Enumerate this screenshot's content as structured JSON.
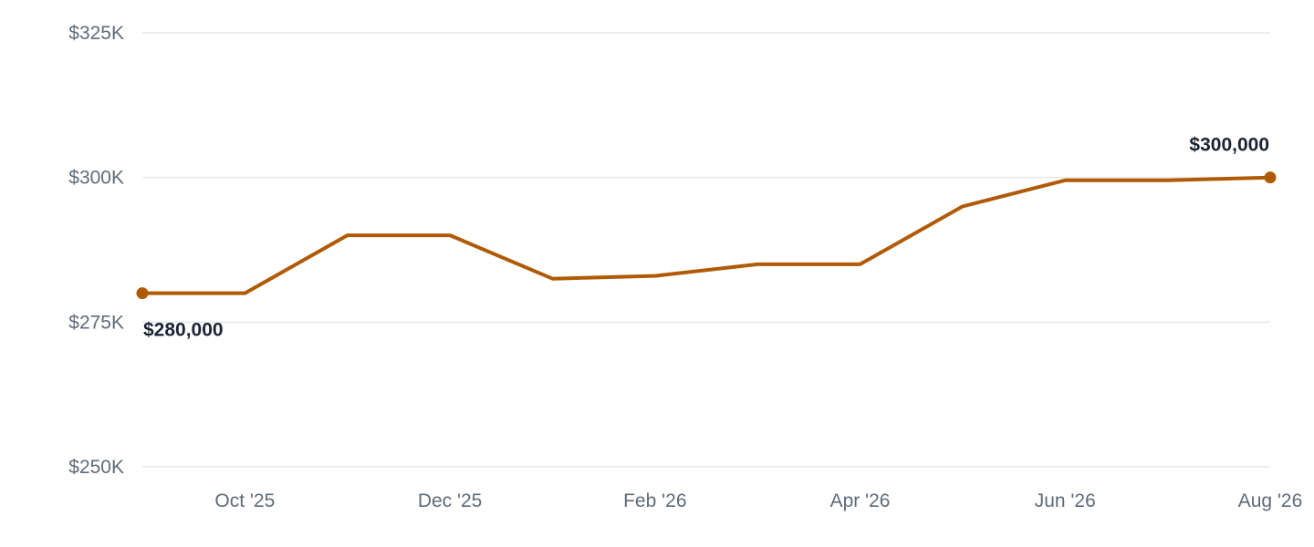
{
  "chart_data": {
    "type": "line",
    "x": [
      "Sep '25",
      "Oct '25",
      "Nov '25",
      "Dec '25",
      "Jan '26",
      "Feb '26",
      "Mar '26",
      "Apr '26",
      "May '26",
      "Jun '26",
      "Jul '26",
      "Aug '26"
    ],
    "x_tick_labels": [
      "Oct '25",
      "Dec '25",
      "Feb '26",
      "Apr '26",
      "Jun '26",
      "Aug '26"
    ],
    "series": [
      {
        "values": [
          280000,
          280000,
          290000,
          290000,
          282500,
          283000,
          285000,
          285000,
          295000,
          299500,
          299500,
          300000
        ],
        "color": "#b05a06"
      }
    ],
    "y_ticks": [
      250000,
      275000,
      300000,
      325000
    ],
    "y_tick_labels": [
      "$250K",
      "$275K",
      "$300K",
      "$325K"
    ],
    "ylim": [
      250000,
      325000
    ],
    "grid": true,
    "annotations": [
      {
        "x": "Sep '25",
        "value": 280000,
        "label": "$280,000"
      },
      {
        "x": "Aug '26",
        "value": 300000,
        "label": "$300,000"
      }
    ]
  }
}
